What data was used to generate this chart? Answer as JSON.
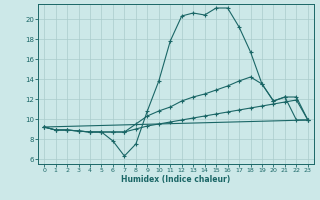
{
  "xlabel": "Humidex (Indice chaleur)",
  "bg_color": "#cce8e8",
  "grid_color": "#aacccc",
  "line_color": "#1a6666",
  "xlim": [
    -0.5,
    23.5
  ],
  "ylim": [
    5.5,
    21.5
  ],
  "xticks": [
    0,
    1,
    2,
    3,
    4,
    5,
    6,
    7,
    8,
    9,
    10,
    11,
    12,
    13,
    14,
    15,
    16,
    17,
    18,
    19,
    20,
    21,
    22,
    23
  ],
  "yticks": [
    6,
    8,
    10,
    12,
    14,
    16,
    18,
    20
  ],
  "line1_x": [
    0,
    1,
    2,
    3,
    4,
    5,
    6,
    7,
    8,
    9,
    10,
    11,
    12,
    13,
    14,
    15,
    16,
    17,
    18,
    19,
    20,
    21,
    22,
    23
  ],
  "line1_y": [
    9.2,
    8.9,
    8.9,
    8.8,
    8.7,
    8.7,
    7.8,
    6.3,
    7.5,
    10.8,
    13.8,
    17.8,
    20.3,
    20.6,
    20.4,
    21.1,
    21.1,
    19.2,
    16.7,
    13.5,
    11.8,
    12.2,
    9.9,
    9.9
  ],
  "line2_x": [
    0,
    1,
    2,
    3,
    4,
    5,
    6,
    7,
    8,
    9,
    10,
    11,
    12,
    13,
    14,
    15,
    16,
    17,
    18,
    19,
    20,
    21,
    22,
    23
  ],
  "line2_y": [
    9.2,
    8.9,
    8.9,
    8.8,
    8.7,
    8.7,
    8.7,
    8.7,
    9.5,
    10.3,
    10.8,
    11.2,
    11.8,
    12.2,
    12.5,
    12.9,
    13.3,
    13.8,
    14.2,
    13.5,
    11.8,
    12.2,
    12.2,
    9.9
  ],
  "line3_x": [
    0,
    1,
    2,
    3,
    4,
    5,
    6,
    7,
    8,
    9,
    10,
    11,
    12,
    13,
    14,
    15,
    16,
    17,
    18,
    19,
    20,
    21,
    22,
    23
  ],
  "line3_y": [
    9.2,
    8.9,
    8.9,
    8.8,
    8.7,
    8.7,
    8.7,
    8.7,
    9.0,
    9.3,
    9.5,
    9.7,
    9.9,
    10.1,
    10.3,
    10.5,
    10.7,
    10.9,
    11.1,
    11.3,
    11.5,
    11.7,
    11.9,
    9.9
  ],
  "line4_x": [
    0,
    23
  ],
  "line4_y": [
    9.2,
    9.9
  ]
}
